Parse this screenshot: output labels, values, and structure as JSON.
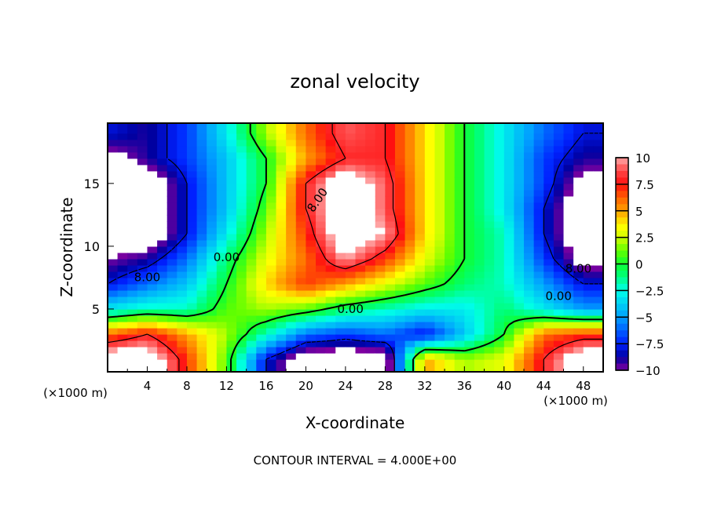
{
  "chart_data": {
    "type": "heatmap",
    "title": "zonal velocity",
    "xlabel": "X-coordinate",
    "ylabel": "Z-coordinate",
    "x_unit_left": "(×1000 m)",
    "x_unit_right": "(×1000 m)",
    "footer": "CONTOUR INTERVAL = 4.000E+00",
    "xlim": [
      0,
      50
    ],
    "ylim": [
      0,
      19.8
    ],
    "xticks": [
      4,
      8,
      12,
      16,
      20,
      24,
      28,
      32,
      36,
      40,
      44,
      48
    ],
    "yticks": [
      5,
      10,
      15
    ],
    "colorbar": {
      "range": [
        -10,
        10
      ],
      "ticks": [
        "10",
        "7.5",
        "5",
        "2.5",
        "0",
        "−2.5",
        "−5",
        "−7.5",
        "−10"
      ],
      "tick_values": [
        10,
        7.5,
        5,
        2.5,
        0,
        -2.5,
        -5,
        -7.5,
        -10
      ],
      "out_of_range_color": "#ffffff"
    },
    "contour_levels": [
      -8,
      0,
      8
    ],
    "contour_labels": [
      {
        "text": "8.00",
        "x": 21.5,
        "z": 13.5
      },
      {
        "text": "0.00",
        "x": 12,
        "z": 8.8
      },
      {
        "text": "8.00",
        "x": 4,
        "z": 7.2
      },
      {
        "text": "0.00",
        "x": 24.5,
        "z": 4.7
      },
      {
        "text": "0.00",
        "x": 45.5,
        "z": 5.7
      },
      {
        "text": "8.00",
        "x": 47.5,
        "z": 7.9
      }
    ],
    "grid_x": [
      0,
      4,
      8,
      12,
      16,
      20,
      24,
      28,
      32,
      36,
      40,
      44,
      48
    ],
    "grid_z": [
      19,
      17,
      15,
      13,
      11,
      9,
      7,
      5,
      3,
      1
    ],
    "values": [
      [
        -8,
        -9,
        -7,
        -3,
        2,
        6,
        9,
        8,
        4,
        0,
        -3,
        -6,
        -8
      ],
      [
        -11,
        -9,
        -7,
        -4,
        0,
        5,
        8,
        8,
        4,
        0,
        -3,
        -7,
        -9
      ],
      [
        -12,
        -12,
        -8,
        -4,
        0,
        8,
        12,
        9,
        4,
        0,
        -3,
        -7,
        -11
      ],
      [
        -12,
        -12,
        -8,
        -4,
        1,
        8,
        12,
        9,
        4,
        0,
        -3,
        -8,
        -12
      ],
      [
        -12,
        -12,
        -8,
        -3,
        2,
        7,
        12,
        10,
        4,
        0,
        -2,
        -8,
        -12
      ],
      [
        -10,
        -9,
        -6,
        -1,
        3,
        6,
        10,
        7,
        3,
        0,
        -2,
        -7,
        -11
      ],
      [
        -8,
        -6,
        -4,
        0,
        4,
        7,
        5,
        3,
        1,
        -1,
        -2,
        -5,
        -8
      ],
      [
        -3,
        -2,
        -2,
        1,
        2,
        1,
        -1,
        -2,
        -3,
        -3,
        -1,
        -3,
        -5
      ],
      [
        6,
        8,
        5,
        2,
        -2,
        -6,
        -7,
        -6,
        -8,
        -4,
        0,
        6,
        7
      ],
      [
        12,
        12,
        7,
        1,
        -8,
        -12,
        -12,
        -12,
        5,
        2,
        3,
        8,
        12
      ]
    ],
    "color_stops": [
      [
        -10,
        "#8000a0"
      ],
      [
        -8.75,
        "#0000a0"
      ],
      [
        -7.5,
        "#0020ff"
      ],
      [
        -5,
        "#00a0ff"
      ],
      [
        -2.5,
        "#00ffe8"
      ],
      [
        -1,
        "#00ff70"
      ],
      [
        0,
        "#10ff30"
      ],
      [
        1.2,
        "#60ff00"
      ],
      [
        2.5,
        "#d0ff00"
      ],
      [
        3.5,
        "#ffff00"
      ],
      [
        5,
        "#ffa000"
      ],
      [
        6.25,
        "#ff6000"
      ],
      [
        7.5,
        "#ff1010"
      ],
      [
        8.75,
        "#ff4848"
      ],
      [
        10,
        "#ffa8a8"
      ]
    ]
  }
}
